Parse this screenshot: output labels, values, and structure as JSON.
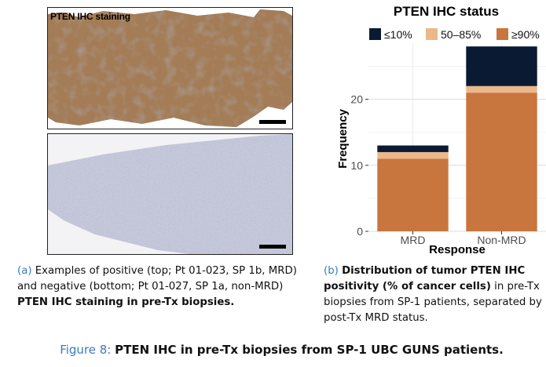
{
  "panel_a": {
    "image_label": "PTEN IHC staining",
    "caption_tag": "(a)",
    "caption_text": "Examples of positive (top; Pt 01-023, SP 1b, MRD) and negative (bottom; Pt 01-027, SP 1a, non-MRD)",
    "caption_bold": "PTEN IHC staining in pre-Tx biopsies."
  },
  "panel_b": {
    "caption_tag": "(b)",
    "caption_bold": "Distribution of tumor PTEN IHC positivity (% of cancer cells)",
    "caption_text": "in pre-Tx biopsies from SP-1 patients, separated by post-Tx MRD status."
  },
  "figure_caption": {
    "tag": "Figure 8:",
    "text": "PTEN IHC in pre-Tx biopsies from SP-1 UBC GUNS patients."
  },
  "chart_data": {
    "type": "bar",
    "stacked": true,
    "title": "PTEN IHC status",
    "xlabel": "Response",
    "ylabel": "Frequency",
    "categories": [
      "MRD",
      "Non-MRD"
    ],
    "series": [
      {
        "name": "≥90%",
        "color": "#c8763e",
        "values": [
          11,
          21
        ]
      },
      {
        "name": "50–85%",
        "color": "#eab88a",
        "values": [
          1,
          1
        ]
      },
      {
        "name": "≤10%",
        "color": "#0a1a33",
        "values": [
          1,
          6
        ]
      }
    ],
    "legend_order": [
      "≤10%",
      "50–85%",
      "≥90%"
    ],
    "legend_position": "top",
    "yticks": [
      0,
      10,
      20
    ],
    "ylim": [
      0,
      28.5
    ],
    "grid": true
  }
}
